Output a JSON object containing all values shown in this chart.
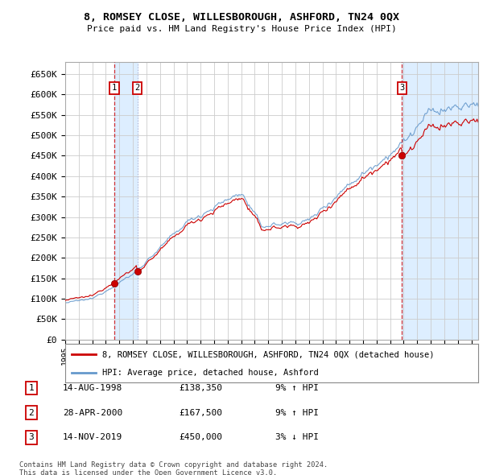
{
  "title": "8, ROMSEY CLOSE, WILLESBOROUGH, ASHFORD, TN24 0QX",
  "subtitle": "Price paid vs. HM Land Registry's House Price Index (HPI)",
  "ylabel_ticks": [
    "£0",
    "£50K",
    "£100K",
    "£150K",
    "£200K",
    "£250K",
    "£300K",
    "£350K",
    "£400K",
    "£450K",
    "£500K",
    "£550K",
    "£600K",
    "£650K"
  ],
  "ytick_values": [
    0,
    50000,
    100000,
    150000,
    200000,
    250000,
    300000,
    350000,
    400000,
    450000,
    500000,
    550000,
    600000,
    650000
  ],
  "xlim_start": 1995.0,
  "xlim_end": 2025.5,
  "ylim_min": 0,
  "ylim_max": 680000,
  "sales": [
    {
      "date": 1998.617,
      "price": 138350,
      "label": "1"
    },
    {
      "date": 2000.328,
      "price": 167500,
      "label": "2"
    },
    {
      "date": 2019.874,
      "price": 450000,
      "label": "3"
    }
  ],
  "legend_address": "8, ROMSEY CLOSE, WILLESBOROUGH, ASHFORD, TN24 0QX (detached house)",
  "legend_hpi": "HPI: Average price, detached house, Ashford",
  "table": [
    {
      "num": "1",
      "date": "14-AUG-1998",
      "price": "£138,350",
      "pct": "9%",
      "dir": "↑",
      "ref": "HPI"
    },
    {
      "num": "2",
      "date": "28-APR-2000",
      "price": "£167,500",
      "pct": "9%",
      "dir": "↑",
      "ref": "HPI"
    },
    {
      "num": "3",
      "date": "14-NOV-2019",
      "price": "£450,000",
      "pct": "3%",
      "dir": "↓",
      "ref": "HPI"
    }
  ],
  "footnote1": "Contains HM Land Registry data © Crown copyright and database right 2024.",
  "footnote2": "This data is licensed under the Open Government Licence v3.0.",
  "property_line_color": "#cc0000",
  "hpi_line_color": "#6699cc",
  "shade_color": "#ddeeff",
  "grid_color": "#cccccc",
  "bg_color": "#ffffff",
  "plot_bg_color": "#ffffff"
}
